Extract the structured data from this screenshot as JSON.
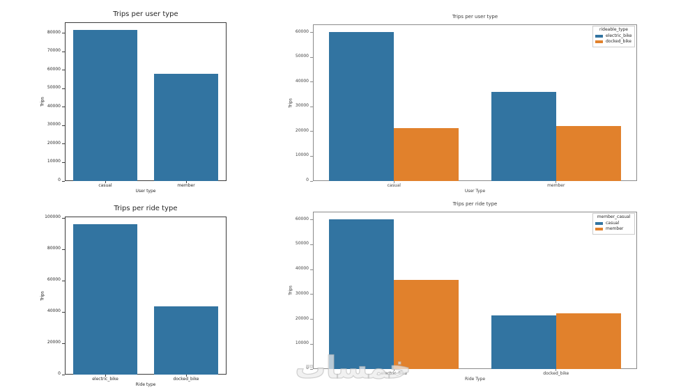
{
  "page": {
    "background": "#ffffff"
  },
  "watermark": {
    "text": "خمسات"
  },
  "colors": {
    "bar_blue": "#3274a1",
    "bar_orange": "#e1812c",
    "text": "#262626"
  },
  "chart_data": [
    {
      "id": "trips-per-user-type-total",
      "type": "bar",
      "title": "Trips per user type",
      "xlabel": "User type",
      "ylabel": "Trips",
      "categories": [
        "casual",
        "member"
      ],
      "series": [
        {
          "name": "trips",
          "color": "#3274a1",
          "values": [
            81800,
            58200
          ]
        }
      ],
      "ylim": [
        0,
        85900
      ],
      "ytick_step": 10000,
      "yticks": [
        0,
        10000,
        20000,
        30000,
        40000,
        50000,
        60000,
        70000,
        80000
      ],
      "grid": false,
      "legend": null
    },
    {
      "id": "trips-per-user-type-by-rideable-type",
      "type": "bar",
      "title": "Trips per user type",
      "xlabel": "User Type",
      "ylabel": "Trips",
      "categories": [
        "casual",
        "member"
      ],
      "series": [
        {
          "name": "electric_bike",
          "color": "#3274a1",
          "values": [
            60300,
            35900
          ]
        },
        {
          "name": "docked_bike",
          "color": "#e1812c",
          "values": [
            21500,
            22300
          ]
        }
      ],
      "ylim": [
        0,
        63300
      ],
      "ytick_step": 10000,
      "yticks": [
        0,
        10000,
        20000,
        30000,
        40000,
        50000,
        60000
      ],
      "grid": false,
      "legend": {
        "title": "rideable_type",
        "position": "upper right",
        "entries": [
          "electric_bike",
          "docked_bike"
        ]
      }
    },
    {
      "id": "trips-per-ride-type-total",
      "type": "bar",
      "title": "Trips per ride type",
      "xlabel": "Ride type",
      "ylabel": "Trips",
      "categories": [
        "electric_bike",
        "docked_bike"
      ],
      "series": [
        {
          "name": "trips",
          "color": "#3274a1",
          "values": [
            96200,
            43800
          ]
        }
      ],
      "ylim": [
        0,
        101000
      ],
      "ytick_step": 20000,
      "yticks": [
        0,
        20000,
        40000,
        60000,
        80000,
        100000
      ],
      "grid": false,
      "legend": null
    },
    {
      "id": "trips-per-ride-type-by-member-casual",
      "type": "bar",
      "title": "Trips per ride type",
      "xlabel": "Ride Type",
      "ylabel": "Trips",
      "categories": [
        "electric_bike",
        "docked_bike"
      ],
      "series": [
        {
          "name": "casual",
          "color": "#3274a1",
          "values": [
            60300,
            21500
          ]
        },
        {
          "name": "member",
          "color": "#e1812c",
          "values": [
            35900,
            22300
          ]
        }
      ],
      "ylim": [
        0,
        63300
      ],
      "ytick_step": 10000,
      "yticks": [
        0,
        10000,
        20000,
        30000,
        40000,
        50000,
        60000
      ],
      "grid": false,
      "legend": {
        "title": "member_casual",
        "position": "upper right",
        "entries": [
          "casual",
          "member"
        ]
      }
    }
  ]
}
